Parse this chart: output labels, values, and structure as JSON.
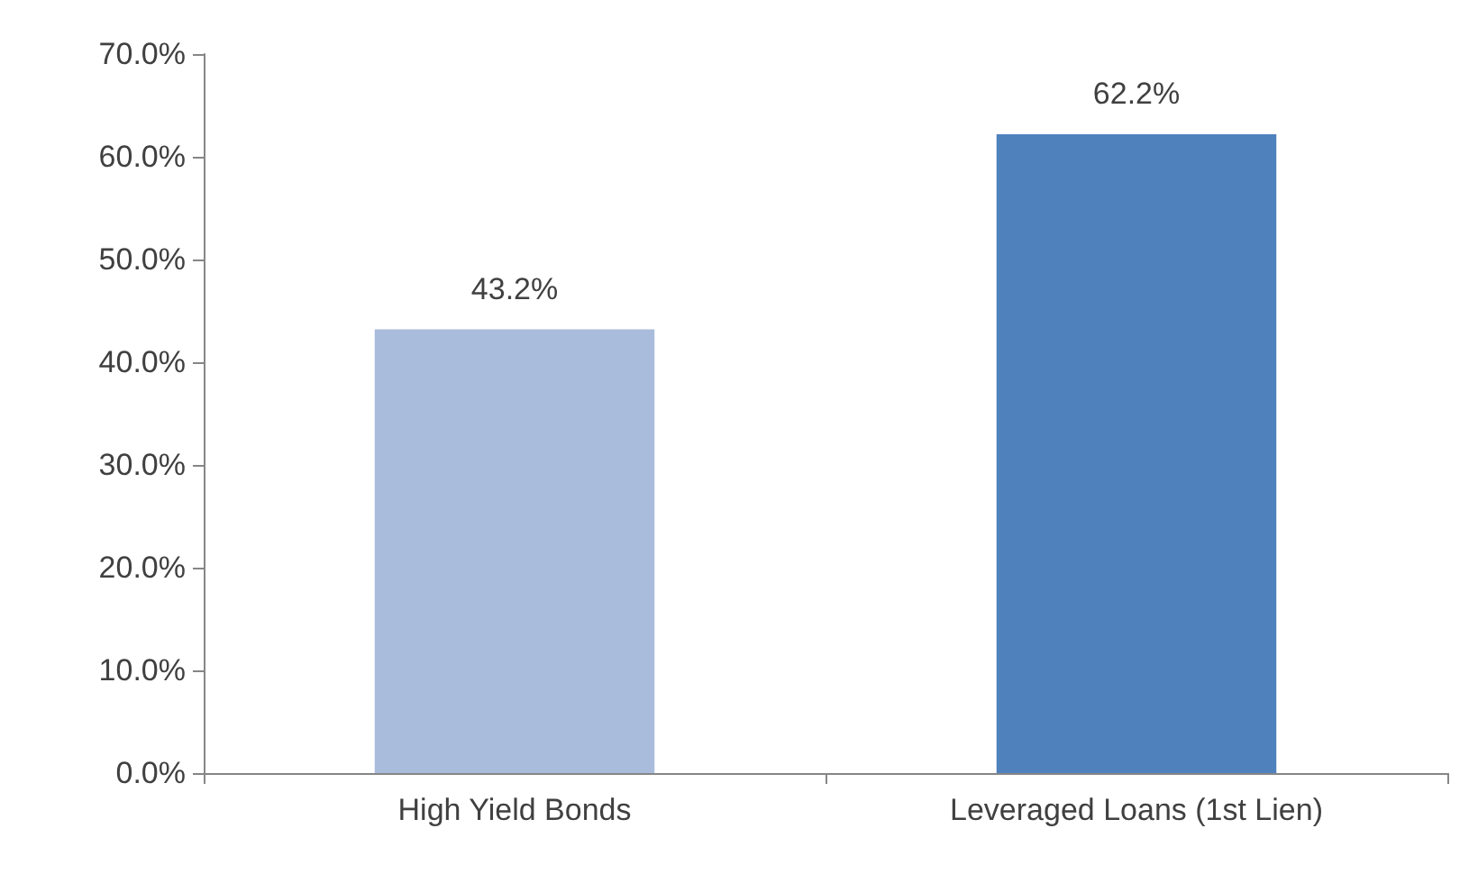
{
  "chart_data": {
    "type": "bar",
    "categories": [
      "High Yield Bonds",
      "Leveraged Loans (1st Lien)"
    ],
    "values": [
      43.2,
      62.2
    ],
    "colors": [
      "#a9bcdc",
      "#4f81bd"
    ],
    "value_labels": [
      "43.2%",
      "62.2%"
    ],
    "ylim": [
      0,
      70
    ],
    "yticks": [
      {
        "value": 0,
        "label": "0.0%"
      },
      {
        "value": 10,
        "label": "10.0%"
      },
      {
        "value": 20,
        "label": "20.0%"
      },
      {
        "value": 30,
        "label": "30.0%"
      },
      {
        "value": 40,
        "label": "40.0%"
      },
      {
        "value": 50,
        "label": "50.0%"
      },
      {
        "value": 60,
        "label": "60.0%"
      },
      {
        "value": 70,
        "label": "70.0%"
      }
    ],
    "grid": false
  }
}
